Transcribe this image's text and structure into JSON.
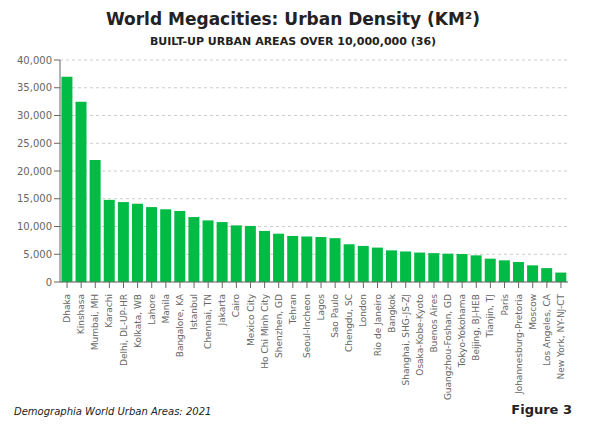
{
  "chart_data": {
    "type": "bar",
    "title": "World Megacities: Urban Density (KM²)",
    "subtitle": "BUILT-UP URBAN AREAS OVER 10,000,000 (36)",
    "annotations": [
      "Demographia World Urban Areas: 2021",
      "Figure 3"
    ],
    "categories": [
      "Dhaka",
      "Kinshasa",
      "Mumbai, MH",
      "Karachi",
      "Delhi, DL-UP-HR",
      "Kolkata, WB",
      "Lahore",
      "Manila",
      "Bangalore, KA",
      "Istanbul",
      "Chennai, TN",
      "Jakarta",
      "Cairo",
      "Mexico City",
      "Ho Chi Minh City",
      "Shenzhen, GD",
      "Tehran",
      "Seoul-Incheon",
      "Lagos",
      "Sao Paulo",
      "Chengdu, SC",
      "London",
      "Rio de Janeiro",
      "Bangkok",
      "Shanghai, SHG-JS-ZJ",
      "Osaka-Kobe-Kyoto",
      "Buenos Aires",
      "Guangzhou-Foshan, GD",
      "Tokyo-Yokohama",
      "Beijing, BJ-HEB",
      "Tianjin, TJ",
      "Paris",
      "Johannesburg-Pretoria",
      "Moscow",
      "Los Angeles, CA",
      "New York, NY-NJ-CT"
    ],
    "values": [
      37000,
      32500,
      22000,
      14800,
      14400,
      14100,
      13500,
      13100,
      12800,
      11700,
      11100,
      10800,
      10200,
      10100,
      9200,
      8700,
      8300,
      8200,
      8100,
      7900,
      6800,
      6500,
      6200,
      5700,
      5500,
      5300,
      5200,
      5100,
      5050,
      4800,
      4200,
      3900,
      3600,
      3000,
      2500,
      1700
    ],
    "color": "#00BB44",
    "ylim": [
      0,
      40000
    ],
    "yticks": [
      0,
      {
        "value": 5000,
        "label": "5,000"
      },
      {
        "value": 10000,
        "label": "10,000"
      },
      {
        "value": 15000,
        "label": "15,000"
      },
      {
        "value": 20000,
        "label": "20,000"
      },
      {
        "value": 25000,
        "label": "25,000"
      },
      {
        "value": 30000,
        "label": "30,000"
      },
      {
        "value": 35000,
        "label": "35,000"
      },
      {
        "value": 40000,
        "label": "40,000"
      }
    ],
    "grid": true
  }
}
